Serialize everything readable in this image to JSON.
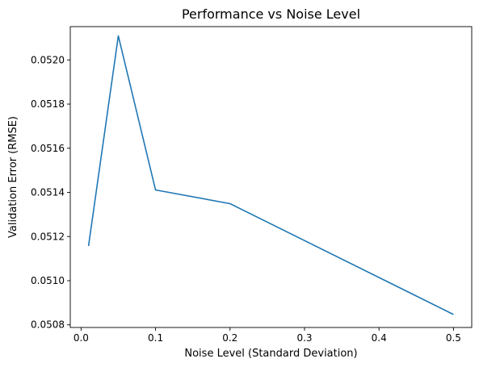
{
  "chart_data": {
    "type": "line",
    "title": "Performance vs Noise Level",
    "xlabel": "Noise Level (Standard Deviation)",
    "ylabel": "Validation Error (RMSE)",
    "xlim": [
      -0.0145,
      0.5245
    ],
    "ylim": [
      0.050788,
      0.052151
    ],
    "x_ticks": [
      0.0,
      0.1,
      0.2,
      0.3,
      0.4,
      0.5
    ],
    "x_tick_labels": [
      "0.0",
      "0.1",
      "0.2",
      "0.3",
      "0.4",
      "0.5"
    ],
    "y_ticks": [
      0.0508,
      0.051,
      0.0512,
      0.0514,
      0.0516,
      0.0518,
      0.052
    ],
    "y_tick_labels": [
      "0.0508",
      "0.0510",
      "0.0512",
      "0.0514",
      "0.0516",
      "0.0518",
      "0.0520"
    ],
    "grid": false,
    "series": [
      {
        "color": "#1f77b4",
        "x": [
          0.01,
          0.05,
          0.1,
          0.2,
          0.5
        ],
        "y": [
          0.051157,
          0.052109,
          0.051411,
          0.051349,
          0.050847
        ]
      }
    ]
  }
}
